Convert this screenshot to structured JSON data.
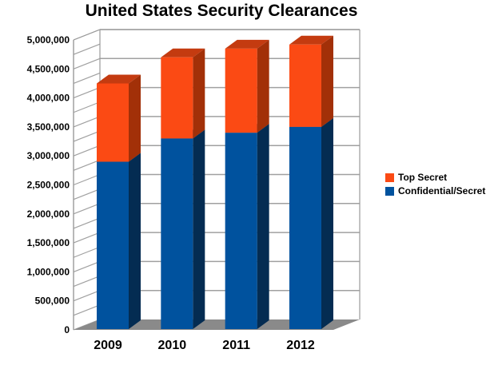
{
  "chart_data": {
    "type": "bar",
    "subtype": "stacked-3d-column",
    "title": "United States Security Clearances",
    "categories": [
      "2009",
      "2010",
      "2011",
      "2012"
    ],
    "series": [
      {
        "name": "Top Secret",
        "values": [
          1350000,
          1400000,
          1450000,
          1420000
        ],
        "color_front": "#FB4A14",
        "color_top": "#C43B10",
        "color_side": "#A23008"
      },
      {
        "name": "Confidential/Secret",
        "values": [
          2900000,
          3300000,
          3400000,
          3500000
        ],
        "color_front": "#00529E",
        "color_top": "#0C4A85",
        "color_side": "#042C52"
      }
    ],
    "stack_totals": [
      4250000,
      4700000,
      4850000,
      4920000
    ],
    "xlabel": "",
    "ylabel": "",
    "ylim": [
      0,
      5000000
    ],
    "y_tick_step": 500000,
    "y_minor_tick_step": 250000,
    "y_tick_labels": [
      "0",
      "500,000",
      "1,000,000",
      "1,500,000",
      "2,000,000",
      "2,500,000",
      "3,000,000",
      "3,500,000",
      "4,000,000",
      "4,500,000",
      "5,000,000"
    ],
    "grid": true,
    "legend_position": "right",
    "decor_colors": {
      "background": "#FFFFFF",
      "floor": "#8A8A8A",
      "wall_fill": "#FFFFFF",
      "grid_line": "#A0A0A0",
      "outline": "#9A9A9A",
      "text": "#000000"
    }
  }
}
